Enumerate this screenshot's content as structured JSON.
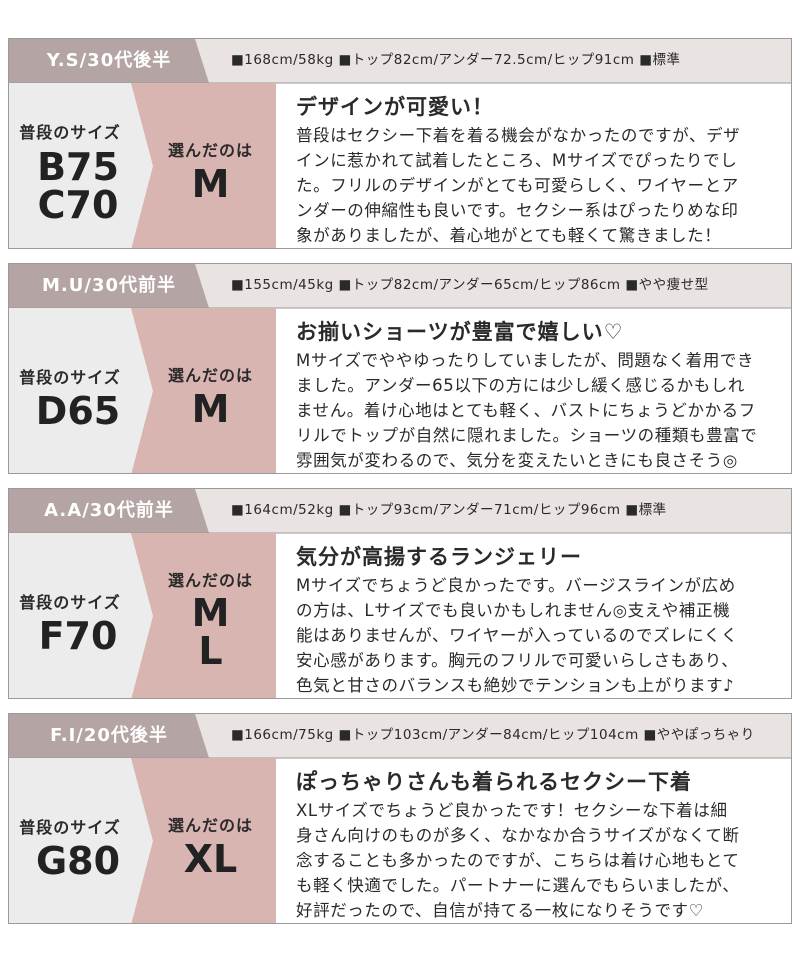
{
  "cards": [
    {
      "name": "Y.S/30代後半",
      "specs": "■168cm/58kg ■トップ82cm/アンダー72.5cm/ヒップ91cm ■標準",
      "usual_label": "普段のサイズ",
      "usual_size": [
        "B75",
        "C70"
      ],
      "chosen_label": "選んだのは",
      "chosen_size": [
        "M"
      ],
      "title": "デザインが可愛い！",
      "body": [
        "普段はセクシー下着を着る機会がなかったのですが、デザ",
        "インに惹かれて試着したところ、Mサイズでぴったりでし",
        "た。フリルのデザインがとても可愛らしく、ワイヤーとア",
        "ンダーの伸縮性も良いです。セクシー系はぴったりめな印",
        "象がありましたが、着心地がとても軽くて驚きました！"
      ]
    },
    {
      "name": "M.U/30代前半",
      "specs": "■155cm/45kg ■トップ82cm/アンダー65cm/ヒップ86cm ■やや痩せ型",
      "usual_label": "普段のサイズ",
      "usual_size": [
        "D65"
      ],
      "chosen_label": "選んだのは",
      "chosen_size": [
        "M"
      ],
      "title": "お揃いショーツが豊富で嬉しい♡",
      "body": [
        "Mサイズでややゆったりしていましたが、問題なく着用でき",
        "ました。アンダー65以下の方には少し緩く感じるかもしれ",
        "ません。着け心地はとても軽く、バストにちょうどかかるフ",
        "リルでトップが自然に隠れました。ショーツの種類も豊富で",
        "雰囲気が変わるので、気分を変えたいときにも良さそう◎"
      ]
    },
    {
      "name": "A.A/30代前半",
      "specs": "■164cm/52kg ■トップ93cm/アンダー71cm/ヒップ96cm ■標準",
      "usual_label": "普段のサイズ",
      "usual_size": [
        "F70"
      ],
      "chosen_label": "選んだのは",
      "chosen_size": [
        "M",
        "L"
      ],
      "title": "気分が高揚するランジェリー",
      "body": [
        "Mサイズでちょうど良かったです。バージスラインが広め",
        "の方は、Lサイズでも良いかもしれません◎支えや補正機",
        "能はありませんが、ワイヤーが入っているのでズレにくく",
        "安心感があります。胸元のフリルで可愛いらしさもあり、",
        "色気と甘さのバランスも絶妙でテンションも上がります♪"
      ]
    },
    {
      "name": "F.I/20代後半",
      "specs": "■166cm/75kg ■トップ103cm/アンダー84cm/ヒップ104cm ■ややぽっちゃり",
      "usual_label": "普段のサイズ",
      "usual_size": [
        "G80"
      ],
      "chosen_label": "選んだのは",
      "chosen_size": [
        "XL"
      ],
      "title": "ぽっちゃりさんも着られるセクシー下着",
      "body": [
        "XLサイズでちょうど良かったです！セクシーな下着は細",
        "身さん向けのものが多く、なかなか合うサイズがなくて断",
        "念することも多かったのですが、こちらは着け心地もとて",
        "も軽く快適でした。パートナーに選んでもらいましたが、",
        "好評だったので、自信が持てる一枚になりそうです♡"
      ]
    }
  ]
}
